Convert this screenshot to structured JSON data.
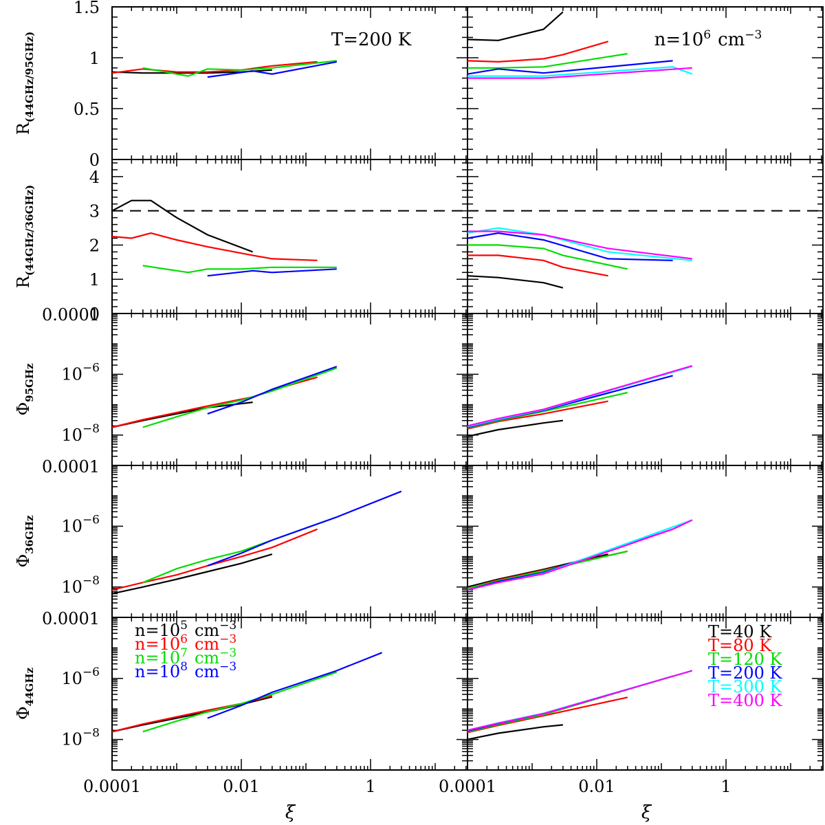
{
  "figure": {
    "xlabel": "ξ",
    "left_annotation": "T=200 K",
    "right_annotation_base": "n=10",
    "right_annotation_exp": "6",
    "right_annotation_unit": "cm",
    "right_annotation_unit_exp": "−3",
    "colors": {
      "black": "#000000",
      "red": "#ff0000",
      "green": "#00dd00",
      "blue": "#0000ff",
      "cyan": "#00ffff",
      "magenta": "#ff00ff"
    }
  },
  "x_ticks": [
    "0.0001",
    "0.01",
    "1"
  ],
  "x_range_log10": [
    -4,
    1.5
  ],
  "rows": [
    {
      "id": "r95",
      "ylabel": "R",
      "ylabel_sub": "(44GHz/95GHz)",
      "scale": "linear",
      "ylim": [
        0,
        1.5
      ],
      "ticks": [
        "0",
        "0.5",
        "1",
        "1.5"
      ]
    },
    {
      "id": "r36",
      "ylabel": "R",
      "ylabel_sub": "(44GHz/36GHz)",
      "scale": "linear",
      "ylim": [
        0,
        4.5
      ],
      "ticks": [
        "0",
        "1",
        "2",
        "3",
        "4"
      ],
      "hline": 3
    },
    {
      "id": "p95",
      "ylabel": "Φ",
      "ylabel_sub": "95GHz",
      "scale": "log",
      "ylim": [
        -9,
        -4
      ],
      "ticks": [
        "0.0001",
        "10−6",
        "10−8"
      ]
    },
    {
      "id": "p36",
      "ylabel": "Φ",
      "ylabel_sub": "36GHz",
      "scale": "log",
      "ylim": [
        -9,
        -4
      ],
      "ticks": [
        "0.0001",
        "10−6",
        "10−8"
      ]
    },
    {
      "id": "p44",
      "ylabel": "Φ",
      "ylabel_sub": "44GHz",
      "scale": "log",
      "ylim": [
        -9,
        -4
      ],
      "ticks": [
        "0.0001",
        "10−6",
        "10−8"
      ]
    }
  ],
  "legend_left": [
    {
      "base": "n=10",
      "exp": "5",
      "unit": "cm",
      "uexp": "−3",
      "color": "black"
    },
    {
      "base": "n=10",
      "exp": "6",
      "unit": "cm",
      "uexp": "−3",
      "color": "red"
    },
    {
      "base": "n=10",
      "exp": "7",
      "unit": "cm",
      "uexp": "−3",
      "color": "green"
    },
    {
      "base": "n=10",
      "exp": "8",
      "unit": "cm",
      "uexp": "−3",
      "color": "blue"
    }
  ],
  "legend_right": [
    {
      "label": "T=40 K",
      "color": "black"
    },
    {
      "label": "T=80 K",
      "color": "red"
    },
    {
      "label": "T=120 K",
      "color": "green"
    },
    {
      "label": "T=200 K",
      "color": "blue"
    },
    {
      "label": "T=300 K",
      "color": "cyan"
    },
    {
      "label": "T=400 K",
      "color": "magenta"
    }
  ],
  "chart_data": [
    {
      "type": "line",
      "panel": "left",
      "row": "r95",
      "series": [
        {
          "color": "black",
          "x": [
            0.0001,
            0.0003,
            0.001,
            0.003,
            0.01,
            0.03
          ],
          "y": [
            0.86,
            0.85,
            0.85,
            0.85,
            0.86,
            0.88
          ]
        },
        {
          "color": "red",
          "x": [
            0.0001,
            0.0003,
            0.001,
            0.003,
            0.01,
            0.03,
            0.15
          ],
          "y": [
            0.85,
            0.89,
            0.86,
            0.86,
            0.88,
            0.92,
            0.96
          ]
        },
        {
          "color": "green",
          "x": [
            0.0003,
            0.0015,
            0.003,
            0.01,
            0.03,
            0.3
          ],
          "y": [
            0.9,
            0.82,
            0.89,
            0.88,
            0.9,
            0.97
          ]
        },
        {
          "color": "blue",
          "x": [
            0.003,
            0.015,
            0.03,
            0.3
          ],
          "y": [
            0.81,
            0.87,
            0.84,
            0.96
          ]
        }
      ]
    },
    {
      "type": "line",
      "panel": "right",
      "row": "r95",
      "series": [
        {
          "color": "black",
          "x": [
            0.0001,
            0.0003,
            0.0015,
            0.003
          ],
          "y": [
            1.18,
            1.17,
            1.28,
            1.45
          ]
        },
        {
          "color": "red",
          "x": [
            0.0001,
            0.0003,
            0.0015,
            0.003,
            0.015
          ],
          "y": [
            0.97,
            0.96,
            0.99,
            1.03,
            1.16
          ]
        },
        {
          "color": "green",
          "x": [
            0.0001,
            0.0003,
            0.0015,
            0.03
          ],
          "y": [
            0.9,
            0.9,
            0.91,
            1.04
          ]
        },
        {
          "color": "blue",
          "x": [
            0.0001,
            0.0003,
            0.0015,
            0.15
          ],
          "y": [
            0.84,
            0.89,
            0.85,
            0.97
          ]
        },
        {
          "color": "cyan",
          "x": [
            0.0001,
            0.0003,
            0.0015,
            0.15,
            0.3
          ],
          "y": [
            0.82,
            0.82,
            0.82,
            0.91,
            0.84
          ]
        },
        {
          "color": "magenta",
          "x": [
            0.0001,
            0.0003,
            0.0015,
            0.3
          ],
          "y": [
            0.8,
            0.8,
            0.8,
            0.9
          ]
        }
      ]
    },
    {
      "type": "line",
      "panel": "left",
      "row": "r36",
      "series": [
        {
          "color": "black",
          "x": [
            0.0001,
            0.0002,
            0.0004,
            0.001,
            0.003,
            0.015
          ],
          "y": [
            3.0,
            3.3,
            3.3,
            2.8,
            2.3,
            1.8
          ]
        },
        {
          "color": "red",
          "x": [
            0.0001,
            0.0002,
            0.0004,
            0.001,
            0.003,
            0.015,
            0.03,
            0.15
          ],
          "y": [
            2.25,
            2.2,
            2.35,
            2.15,
            1.95,
            1.7,
            1.6,
            1.55
          ]
        },
        {
          "color": "green",
          "x": [
            0.0003,
            0.0015,
            0.003,
            0.01,
            0.03,
            0.3
          ],
          "y": [
            1.4,
            1.2,
            1.3,
            1.3,
            1.35,
            1.35
          ]
        },
        {
          "color": "blue",
          "x": [
            0.003,
            0.015,
            0.03,
            0.3
          ],
          "y": [
            1.1,
            1.25,
            1.2,
            1.3
          ]
        }
      ]
    },
    {
      "type": "line",
      "panel": "right",
      "row": "r36",
      "series": [
        {
          "color": "black",
          "x": [
            0.0001,
            0.0003,
            0.0015,
            0.003
          ],
          "y": [
            1.1,
            1.05,
            0.9,
            0.75
          ]
        },
        {
          "color": "red",
          "x": [
            0.0001,
            0.0003,
            0.0015,
            0.003,
            0.015
          ],
          "y": [
            1.7,
            1.7,
            1.55,
            1.35,
            1.1
          ]
        },
        {
          "color": "green",
          "x": [
            0.0001,
            0.0003,
            0.0015,
            0.003,
            0.03
          ],
          "y": [
            2.0,
            2.0,
            1.9,
            1.7,
            1.3
          ]
        },
        {
          "color": "blue",
          "x": [
            0.0001,
            0.0003,
            0.0015,
            0.015,
            0.15
          ],
          "y": [
            2.2,
            2.35,
            2.15,
            1.6,
            1.55
          ]
        },
        {
          "color": "cyan",
          "x": [
            0.0001,
            0.0003,
            0.0015,
            0.015,
            0.3
          ],
          "y": [
            2.35,
            2.5,
            2.3,
            1.8,
            1.55
          ]
        },
        {
          "color": "magenta",
          "x": [
            0.0001,
            0.0003,
            0.0015,
            0.015,
            0.3
          ],
          "y": [
            2.4,
            2.4,
            2.3,
            1.9,
            1.6
          ]
        }
      ]
    },
    {
      "type": "line",
      "panel": "left",
      "row": "p95",
      "series": [
        {
          "color": "black",
          "x": [
            0.0001,
            0.0003,
            0.001,
            0.003,
            0.015
          ],
          "y": [
            1.8e-08,
            3e-08,
            5e-08,
            8e-08,
            1.2e-07
          ]
        },
        {
          "color": "red",
          "x": [
            0.0001,
            0.0003,
            0.001,
            0.003,
            0.015,
            0.03,
            0.15
          ],
          "y": [
            1.8e-08,
            3.2e-08,
            5.5e-08,
            9e-08,
            1.8e-07,
            3e-07,
            8e-07
          ]
        },
        {
          "color": "green",
          "x": [
            0.0003,
            0.001,
            0.003,
            0.01,
            0.03,
            0.3
          ],
          "y": [
            1.8e-08,
            4e-08,
            8e-08,
            1.4e-07,
            2.8e-07,
            1.6e-06
          ]
        },
        {
          "color": "blue",
          "x": [
            0.003,
            0.01,
            0.03,
            0.3
          ],
          "y": [
            5e-08,
            1.2e-07,
            3.2e-07,
            1.8e-06
          ]
        }
      ]
    },
    {
      "type": "line",
      "panel": "right",
      "row": "p95",
      "series": [
        {
          "color": "black",
          "x": [
            0.0001,
            0.0003,
            0.0015,
            0.003
          ],
          "y": [
            9e-09,
            1.5e-08,
            2.5e-08,
            3e-08
          ]
        },
        {
          "color": "red",
          "x": [
            0.0001,
            0.0003,
            0.0015,
            0.015
          ],
          "y": [
            1.6e-08,
            2.8e-08,
            5e-08,
            1.3e-07
          ]
        },
        {
          "color": "green",
          "x": [
            0.0001,
            0.0003,
            0.0015,
            0.03
          ],
          "y": [
            1.7e-08,
            3e-08,
            6e-08,
            2.5e-07
          ]
        },
        {
          "color": "blue",
          "x": [
            0.0001,
            0.0003,
            0.0015,
            0.15
          ],
          "y": [
            1.8e-08,
            3.2e-08,
            6.5e-08,
            9e-07
          ]
        },
        {
          "color": "cyan",
          "x": [
            0.0001,
            0.0003,
            0.0015,
            0.3
          ],
          "y": [
            1.9e-08,
            3.3e-08,
            6.8e-08,
            1.8e-06
          ]
        },
        {
          "color": "magenta",
          "x": [
            0.0001,
            0.0003,
            0.0015,
            0.3
          ],
          "y": [
            2e-08,
            3.5e-08,
            7e-08,
            1.9e-06
          ]
        }
      ]
    },
    {
      "type": "line",
      "panel": "left",
      "row": "p36",
      "series": [
        {
          "color": "black",
          "x": [
            0.0001,
            0.0003,
            0.001,
            0.003,
            0.01,
            0.03
          ],
          "y": [
            6e-09,
            1e-08,
            1.8e-08,
            3.2e-08,
            6e-08,
            1.2e-07
          ]
        },
        {
          "color": "red",
          "x": [
            0.0001,
            0.0003,
            0.001,
            0.003,
            0.01,
            0.03,
            0.15
          ],
          "y": [
            8e-09,
            1.4e-08,
            2.5e-08,
            5e-08,
            1e-07,
            2e-07,
            8e-07
          ]
        },
        {
          "color": "green",
          "x": [
            0.0003,
            0.001,
            0.003,
            0.01,
            0.03,
            0.3
          ],
          "y": [
            1.4e-08,
            4e-08,
            8e-08,
            1.5e-07,
            3.5e-07,
            2e-06
          ]
        },
        {
          "color": "blue",
          "x": [
            0.003,
            0.01,
            0.03,
            0.3,
            3
          ],
          "y": [
            5e-08,
            1.3e-07,
            3.5e-07,
            2e-06,
            1.4e-05
          ]
        }
      ]
    },
    {
      "type": "line",
      "panel": "right",
      "row": "p36",
      "series": [
        {
          "color": "black",
          "x": [
            0.0001,
            0.0003,
            0.0015,
            0.015
          ],
          "y": [
            1e-08,
            1.8e-08,
            3.8e-08,
            1.2e-07
          ]
        },
        {
          "color": "red",
          "x": [
            0.0001,
            0.0003,
            0.0015,
            0.03
          ],
          "y": [
            9e-09,
            1.7e-08,
            3.6e-08,
            1.5e-07
          ]
        },
        {
          "color": "green",
          "x": [
            0.0001,
            0.0003,
            0.0015,
            0.03
          ],
          "y": [
            9e-09,
            1.6e-08,
            3.4e-08,
            1.5e-07
          ]
        },
        {
          "color": "blue",
          "x": [
            0.0001,
            0.0003,
            0.0015,
            0.15,
            0.3
          ],
          "y": [
            8e-09,
            1.5e-08,
            3e-08,
            8e-07,
            1.6e-06
          ]
        },
        {
          "color": "cyan",
          "x": [
            0.0001,
            0.0003,
            0.0015,
            0.3
          ],
          "y": [
            8e-09,
            1.4e-08,
            2.8e-08,
            1.6e-06
          ]
        },
        {
          "color": "magenta",
          "x": [
            0.0001,
            0.0003,
            0.0015,
            0.15,
            0.3
          ],
          "y": [
            8e-09,
            1.4e-08,
            2.7e-08,
            8e-07,
            1.6e-06
          ]
        }
      ]
    },
    {
      "type": "line",
      "panel": "left",
      "row": "p44",
      "series": [
        {
          "color": "black",
          "x": [
            0.0001,
            0.0003,
            0.001,
            0.003,
            0.01,
            0.03
          ],
          "y": [
            1.8e-08,
            3e-08,
            5e-08,
            8e-08,
            1.4e-07,
            2.5e-07
          ]
        },
        {
          "color": "red",
          "x": [
            0.0001,
            0.0003,
            0.001,
            0.003,
            0.01,
            0.03
          ],
          "y": [
            1.8e-08,
            3.2e-08,
            5.5e-08,
            9e-08,
            1.5e-07,
            2.7e-07
          ]
        },
        {
          "color": "green",
          "x": [
            0.0003,
            0.001,
            0.003,
            0.01,
            0.03,
            0.3
          ],
          "y": [
            1.8e-08,
            4e-08,
            8e-08,
            1.5e-07,
            3e-07,
            1.6e-06
          ]
        },
        {
          "color": "blue",
          "x": [
            0.003,
            0.01,
            0.03,
            0.3,
            1.5
          ],
          "y": [
            5e-08,
            1.3e-07,
            3.5e-07,
            1.8e-06,
            7e-06
          ]
        }
      ]
    },
    {
      "type": "line",
      "panel": "right",
      "row": "p44",
      "series": [
        {
          "color": "black",
          "x": [
            0.0001,
            0.0003,
            0.0015,
            0.003
          ],
          "y": [
            1e-08,
            1.6e-08,
            2.6e-08,
            3e-08
          ]
        },
        {
          "color": "red",
          "x": [
            0.0001,
            0.0003,
            0.0015,
            0.03
          ],
          "y": [
            1.7e-08,
            2.9e-08,
            6e-08,
            2.4e-07
          ]
        },
        {
          "color": "green",
          "x": [
            0.0001,
            0.0003,
            0.0015,
            0.15
          ],
          "y": [
            1.8e-08,
            3.1e-08,
            6.5e-08,
            1.2e-06
          ]
        },
        {
          "color": "blue",
          "x": [
            0.0001,
            0.0003,
            0.0015,
            0.3
          ],
          "y": [
            1.9e-08,
            3.3e-08,
            7e-08,
            1.8e-06
          ]
        },
        {
          "color": "cyan",
          "x": [
            0.0001,
            0.0003,
            0.0015,
            0.3
          ],
          "y": [
            2e-08,
            3.5e-08,
            7.2e-08,
            1.8e-06
          ]
        },
        {
          "color": "magenta",
          "x": [
            0.0001,
            0.0003,
            0.0015,
            0.3
          ],
          "y": [
            2e-08,
            3.4e-08,
            7e-08,
            1.8e-06
          ]
        }
      ]
    }
  ]
}
